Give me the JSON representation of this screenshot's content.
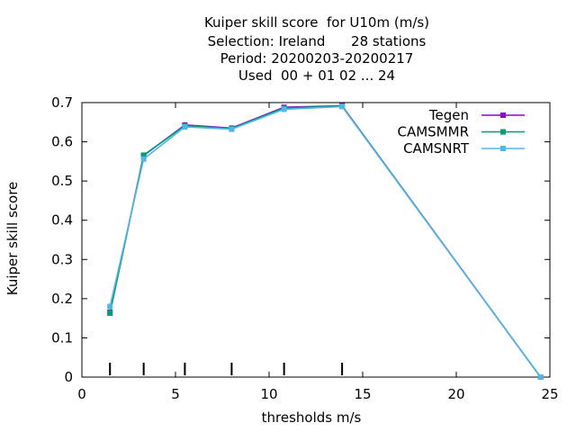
{
  "chart_data": {
    "type": "line",
    "title_lines": [
      "Kuiper skill score  for U10m (m/s)",
      "Selection: Ireland      28 stations",
      "Period: 20200203-20200217",
      "Used  00 + 01 02 ... 24"
    ],
    "xlabel": "thresholds m/s",
    "ylabel": "Kuiper skill score",
    "xlim": [
      0,
      25
    ],
    "ylim": [
      0,
      0.7
    ],
    "xticks": [
      0,
      5,
      10,
      15,
      20,
      25
    ],
    "yticks": [
      0,
      0.1,
      0.2,
      0.3,
      0.4,
      0.5,
      0.6,
      0.7
    ],
    "threshold_marks": [
      1.5,
      3.3,
      5.5,
      8.0,
      10.8,
      13.9
    ],
    "legend_position": "top-right",
    "series": [
      {
        "name": "Tegen",
        "color": "#9400d3",
        "x": [
          1.5,
          3.3,
          5.5,
          8.0,
          10.8,
          13.9,
          24.5
        ],
        "y": [
          0.165,
          0.565,
          0.643,
          0.635,
          0.688,
          0.692,
          0.0
        ]
      },
      {
        "name": "CAMSMMR",
        "color": "#009e73",
        "x": [
          1.5,
          3.3,
          5.5,
          8.0,
          10.8,
          13.9,
          24.5
        ],
        "y": [
          0.163,
          0.566,
          0.641,
          0.634,
          0.686,
          0.691,
          0.0
        ]
      },
      {
        "name": "CAMSNRT",
        "color": "#56b4e9",
        "x": [
          1.5,
          3.3,
          5.5,
          8.0,
          10.8,
          13.9,
          24.5
        ],
        "y": [
          0.18,
          0.556,
          0.638,
          0.632,
          0.683,
          0.69,
          0.0
        ]
      }
    ]
  }
}
